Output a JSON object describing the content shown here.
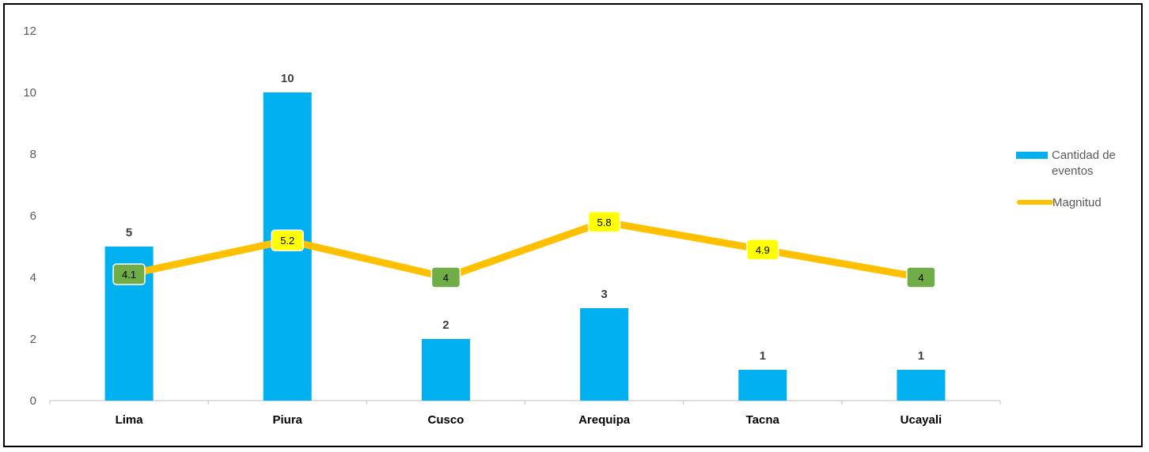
{
  "chart_data": {
    "type": "bar",
    "categories": [
      "Lima",
      "Piura",
      "Cusco",
      "Arequipa",
      "Tacna",
      "Ucayali"
    ],
    "series": [
      {
        "name": "Cantidad de eventos",
        "type": "bar",
        "values": [
          5,
          10,
          2,
          3,
          1,
          1
        ],
        "color": "#00B0F0"
      },
      {
        "name": "Magnitud",
        "type": "line",
        "values": [
          4.1,
          5.2,
          4,
          5.8,
          4.9,
          4
        ],
        "color": "#FFC000"
      }
    ],
    "point_label_colors": [
      "#70AD47",
      "#FFFF00",
      "#70AD47",
      "#FFFF00",
      "#FFFF00",
      "#70AD47"
    ],
    "yticks": [
      0,
      2,
      4,
      6,
      8,
      10,
      12
    ],
    "ylim": [
      0,
      12
    ],
    "title": "",
    "xlabel": "",
    "ylabel": "",
    "grid": false,
    "legend_position": "right"
  }
}
